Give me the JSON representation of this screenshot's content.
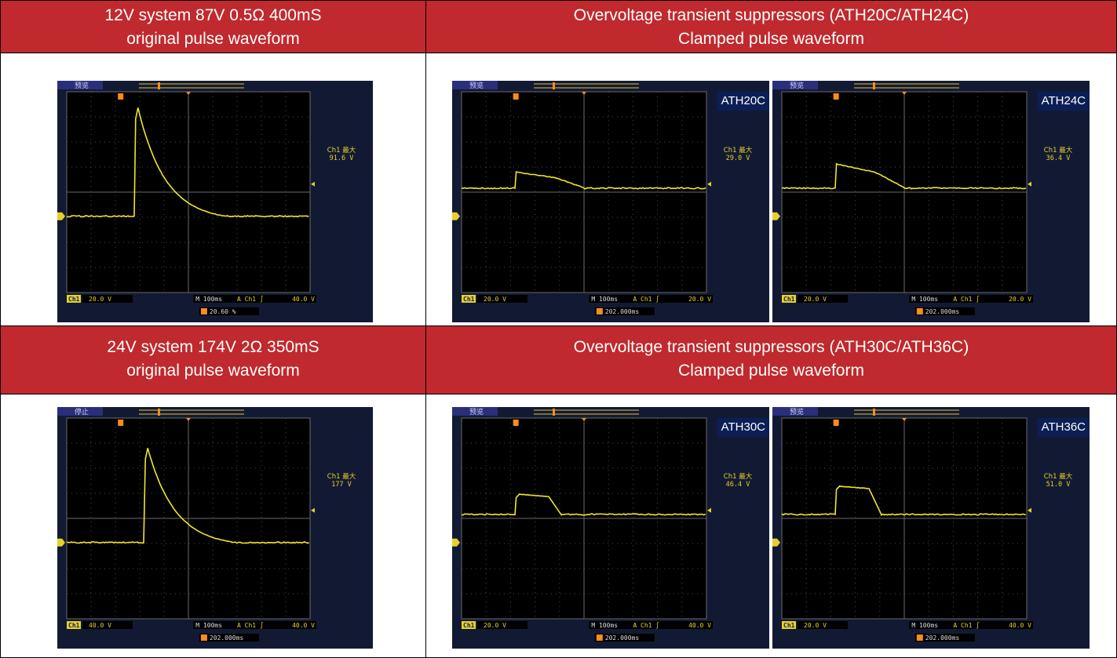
{
  "rows": [
    {
      "left_header": [
        "12V system 87V 0.5Ω 400mS",
        "original pulse waveform"
      ],
      "right_header": [
        "Overvoltage transient suppressors (ATH20C/ATH24C)",
        "Clamped pulse waveform"
      ]
    },
    {
      "left_header": [
        "24V system 174V 2Ω 350mS",
        "original pulse waveform"
      ],
      "right_header": [
        "Overvoltage transient suppressors (ATH30C/ATH36C)",
        "Clamped pulse waveform"
      ]
    }
  ],
  "scopes": [
    {
      "status": "预览",
      "tag": "",
      "max_label": "Ch1 最大",
      "max_value": "91.6 V",
      "ch_label": "Ch1",
      "ch_scale": "20.0 V",
      "timebase": "M 100ms",
      "trigger": "A  Ch1  ∫",
      "trig_level": "40.0 V",
      "bottom": "20.60 %",
      "shape": "sharp",
      "base": 0.62,
      "peak": 0.08,
      "plateau": 0.28
    },
    {
      "status": "预览",
      "tag": "ATH20C",
      "max_label": "Ch1 最大",
      "max_value": "29.0 V",
      "ch_label": "Ch1",
      "ch_scale": "20.0 V",
      "timebase": "M 100ms",
      "trigger": "A  Ch1  ∫",
      "trig_level": "20.0 V",
      "bottom": "202.000ms",
      "shape": "clamp",
      "base": 0.48,
      "peak": 0.4,
      "plateau": 0.22
    },
    {
      "status": "预览",
      "tag": "ATH24C",
      "max_label": "Ch1 最大",
      "max_value": "36.4 V",
      "ch_label": "Ch1",
      "ch_scale": "20.0 V",
      "timebase": "M 100ms",
      "trigger": "A  Ch1  ∫",
      "trig_level": "20.0 V",
      "bottom": "202.000ms",
      "shape": "clamp",
      "base": 0.48,
      "peak": 0.36,
      "plateau": 0.22
    },
    {
      "status": "停止",
      "tag": "",
      "max_label": "Ch1 最大",
      "max_value": "177 V",
      "ch_label": "Ch1",
      "ch_scale": "40.0 V",
      "timebase": "M 100ms",
      "trigger": "A  Ch1  ∫",
      "trig_level": "40.0 V",
      "bottom": "202.000ms",
      "shape": "sharp",
      "base": 0.62,
      "peak": 0.15,
      "plateau": 0.32
    },
    {
      "status": "预览",
      "tag": "ATH30C",
      "max_label": "Ch1 最大",
      "max_value": "46.4 V",
      "ch_label": "Ch1",
      "ch_scale": "20.0 V",
      "timebase": "M 100ms",
      "trigger": "A  Ch1  ∫",
      "trig_level": "40.0 V",
      "bottom": "202.000ms",
      "shape": "flat",
      "base": 0.48,
      "peak": 0.38,
      "plateau": 0.22
    },
    {
      "status": "预览",
      "tag": "ATH36C",
      "max_label": "Ch1 最大",
      "max_value": "51.0 V",
      "ch_label": "Ch1",
      "ch_scale": "20.0 V",
      "timebase": "M 100ms",
      "trigger": "A  Ch1  ∫",
      "trig_level": "40.0 V",
      "bottom": "202.000ms",
      "shape": "flat",
      "base": 0.48,
      "peak": 0.34,
      "plateau": 0.22
    }
  ],
  "colors": {
    "header_bg": "#c0292d",
    "trace": "#f0e62a",
    "scope_bg": "#121a33",
    "grid": "#5a5a5a"
  }
}
